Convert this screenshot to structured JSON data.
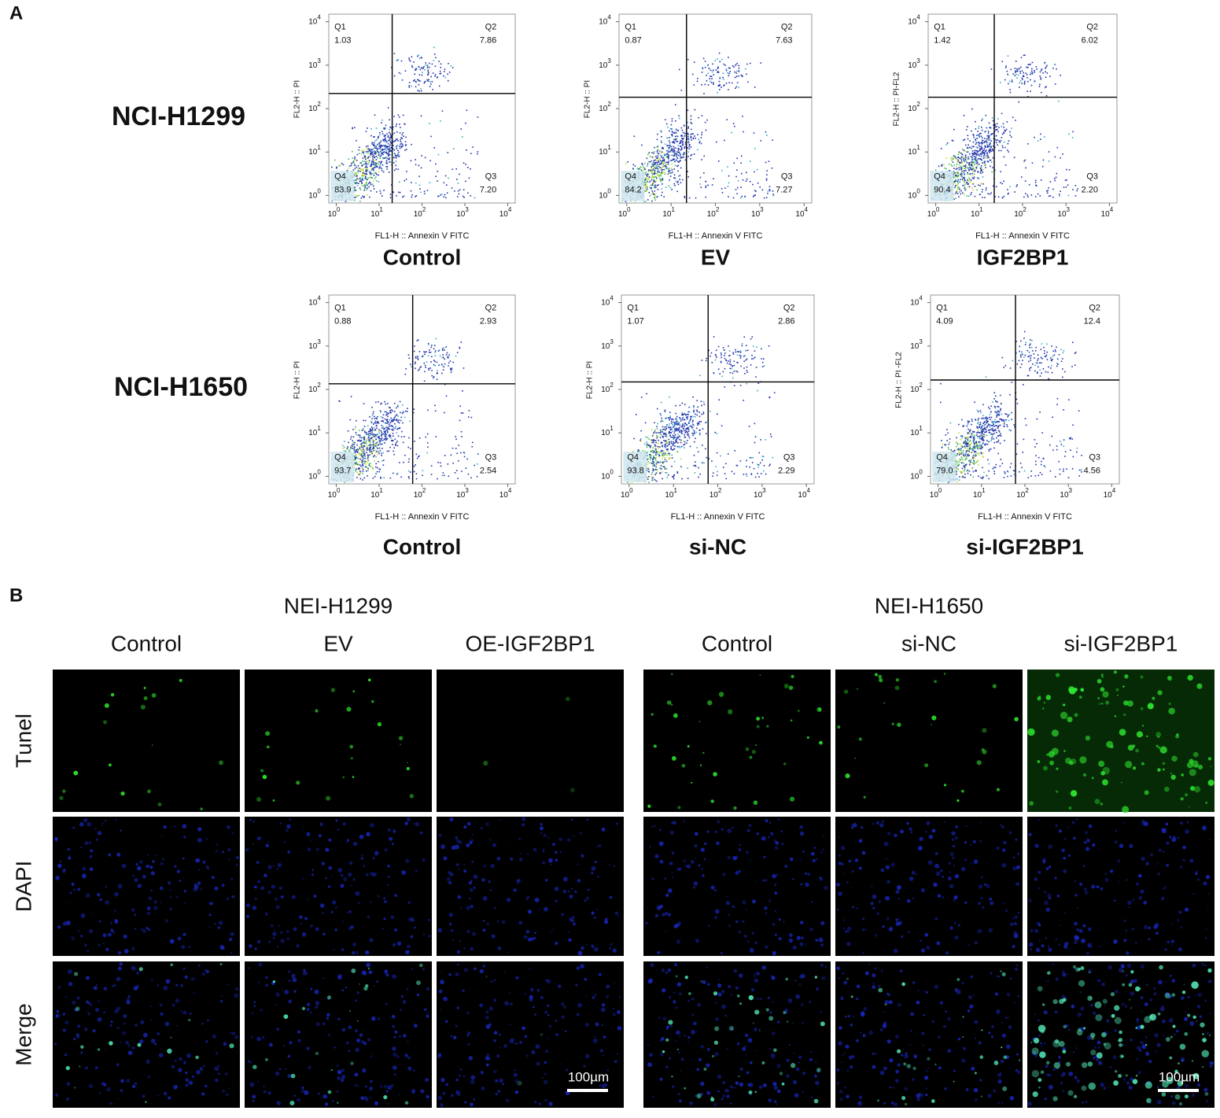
{
  "panel_a": {
    "label": "A",
    "tick_base": "10",
    "tick_exponents": [
      "0",
      "1",
      "2",
      "3",
      "4"
    ],
    "rows": [
      {
        "label": "NCI-H1299",
        "plots": [
          {
            "title": "Control",
            "y_axis_label": "FL2-H :: PI",
            "x_axis_label": "FL1-H :: Annexin V FITC",
            "quadrants": [
              {
                "name": "Q1",
                "value": "1.03"
              },
              {
                "name": "Q2",
                "value": "7.86"
              },
              {
                "name": "Q3",
                "value": "7.20"
              },
              {
                "name": "Q4",
                "value": "83.9"
              }
            ]
          },
          {
            "title": "EV",
            "y_axis_label": "FL2-H :: PI",
            "x_axis_label": "FL1-H :: Annexin V FITC",
            "quadrants": [
              {
                "name": "Q1",
                "value": "0.87"
              },
              {
                "name": "Q2",
                "value": "7.63"
              },
              {
                "name": "Q3",
                "value": "7.27"
              },
              {
                "name": "Q4",
                "value": "84.2"
              }
            ]
          },
          {
            "title": "IGF2BP1",
            "y_axis_label": "FL2-H :: PI-FL2",
            "x_axis_label": "FL1-H :: Annexin V FITC",
            "quadrants": [
              {
                "name": "Q1",
                "value": "1.42"
              },
              {
                "name": "Q2",
                "value": "6.02"
              },
              {
                "name": "Q3",
                "value": "2.20"
              },
              {
                "name": "Q4",
                "value": "90.4"
              }
            ]
          }
        ]
      },
      {
        "label": "NCI-H1650",
        "plots": [
          {
            "title": "Control",
            "y_axis_label": "FL2-H :: PI",
            "x_axis_label": "FL1-H :: Annexin V FITC",
            "quadrants": [
              {
                "name": "Q1",
                "value": "0.88"
              },
              {
                "name": "Q2",
                "value": "2.93"
              },
              {
                "name": "Q3",
                "value": "2.54"
              },
              {
                "name": "Q4",
                "value": "93.7"
              }
            ]
          },
          {
            "title": "si-NC",
            "y_axis_label": "FL2-H :: PI",
            "x_axis_label": "FL1-H :: Annexin V FITC",
            "quadrants": [
              {
                "name": "Q1",
                "value": "1.07"
              },
              {
                "name": "Q2",
                "value": "2.86"
              },
              {
                "name": "Q3",
                "value": "2.29"
              },
              {
                "name": "Q4",
                "value": "93.8"
              }
            ]
          },
          {
            "title": "si-IGF2BP1",
            "y_axis_label": "FL2-H :: PI -FL2",
            "x_axis_label": "FL1-H :: Annexin V FITC",
            "quadrants": [
              {
                "name": "Q1",
                "value": "4.09"
              },
              {
                "name": "Q2",
                "value": "12.4"
              },
              {
                "name": "Q3",
                "value": "4.56"
              },
              {
                "name": "Q4",
                "value": "79.0"
              }
            ]
          }
        ]
      }
    ]
  },
  "panel_b": {
    "label": "B",
    "groups": [
      {
        "label": "NEI-H1299",
        "columns": [
          "Control",
          "EV",
          "OE-IGF2BP1"
        ],
        "scale_bar": "100µm"
      },
      {
        "label": "NEI-H1650",
        "columns": [
          "Control",
          "si-NC",
          "si-IGF2BP1"
        ],
        "scale_bar": "100µm"
      }
    ],
    "rows": [
      "Tunel",
      "DAPI",
      "Merge"
    ]
  }
}
